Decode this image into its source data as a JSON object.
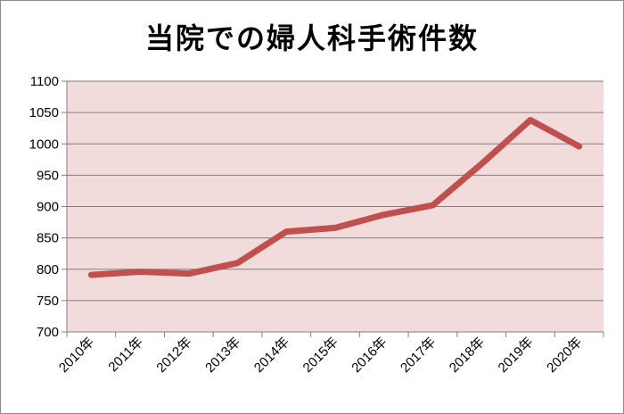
{
  "chart_data": {
    "type": "line",
    "title": "当院での婦人科手術件数",
    "xlabel": "",
    "ylabel": "",
    "categories": [
      "2010年",
      "2011年",
      "2012年",
      "2013年",
      "2014年",
      "2015年",
      "2016年",
      "2017年",
      "2018年",
      "2019年",
      "2020年"
    ],
    "series": [
      {
        "values": [
          791,
          796,
          793,
          810,
          860,
          866,
          887,
          902,
          968,
          1038,
          996
        ]
      }
    ],
    "ylim": [
      700,
      1100
    ],
    "yticks": [
      700,
      750,
      800,
      850,
      900,
      950,
      1000,
      1050,
      1100
    ],
    "grid": true,
    "legend": "none",
    "colors": {
      "line": "#c0504d",
      "plot_background": "#f2dcdb",
      "gridline": "#7f7f7f"
    }
  }
}
